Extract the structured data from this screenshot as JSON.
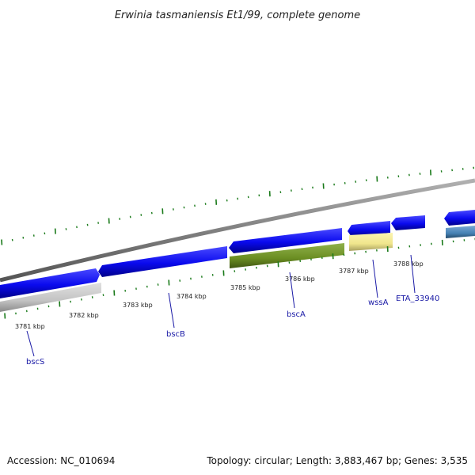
{
  "title": "Erwinia tasmaniensis Et1/99, complete genome",
  "footer": {
    "accession": "Accession: NC_010694",
    "summary": "Topology: circular; Length: 3,883,467 bp; Genes: 3,535"
  },
  "colors": {
    "backbone": "#808080",
    "forward_gene": "#1010ee",
    "olive": "#6b8e23",
    "gray_feature": "#c4c4c4",
    "yellow_feature": "#f0e68c",
    "steel": "#4682b4",
    "tick": "#1a7a1a",
    "gene_label": "#1a1aa6"
  },
  "kbp_labels": [
    "3781 kbp",
    "3782 kbp",
    "3783 kbp",
    "3784 kbp",
    "3785 kbp",
    "3786 kbp",
    "3787 kbp",
    "3788 kbp"
  ],
  "genes": [
    {
      "id": "bscS",
      "label": "bscS"
    },
    {
      "id": "bscB",
      "label": "bscB"
    },
    {
      "id": "bscA",
      "label": "bscA"
    },
    {
      "id": "wssA",
      "label": "wssA"
    },
    {
      "id": "eta",
      "label": "ETA_33940"
    }
  ]
}
